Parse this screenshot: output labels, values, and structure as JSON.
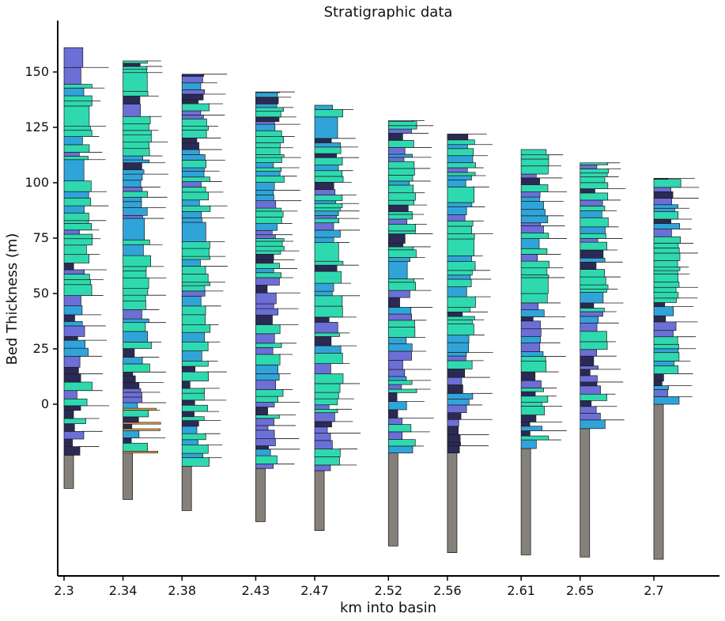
{
  "chart_data": {
    "type": "bar",
    "title": "Stratigraphic data",
    "xlabel": "km into basin",
    "ylabel": "Bed Thickness (m)",
    "x_ticks": [
      "2.3",
      "2.34",
      "2.38",
      "2.43",
      "2.47",
      "2.52",
      "2.56",
      "2.61",
      "2.65",
      "2.7"
    ],
    "y_ticks": [
      0,
      25,
      50,
      75,
      100,
      125,
      150
    ],
    "ylim": [
      -78,
      173
    ],
    "grid": false,
    "colors": {
      "turquoise": "#2fd9b0",
      "blue": "#30a4d9",
      "periwinkle": "#6b6fd6",
      "navy": "#2a2a55",
      "orange": "#f0a84a",
      "basement": "#85807a"
    },
    "columns": [
      {
        "x": 2.3,
        "base": -38,
        "top": 161,
        "basement_top": -23
      },
      {
        "x": 2.34,
        "base": -43,
        "top": 155,
        "basement_top": -22
      },
      {
        "x": 2.38,
        "base": -48,
        "top": 149,
        "basement_top": -28
      },
      {
        "x": 2.43,
        "base": -53,
        "top": 141,
        "basement_top": -29
      },
      {
        "x": 2.47,
        "base": -57,
        "top": 135,
        "basement_top": -30
      },
      {
        "x": 2.52,
        "base": -64,
        "top": 128,
        "basement_top": -22
      },
      {
        "x": 2.56,
        "base": -67,
        "top": 122,
        "basement_top": -22
      },
      {
        "x": 2.61,
        "base": -68,
        "top": 115,
        "basement_top": -20
      },
      {
        "x": 2.65,
        "base": -69,
        "top": 109,
        "basement_top": -11
      },
      {
        "x": 2.7,
        "base": -70,
        "top": 102,
        "basement_top": 0
      }
    ]
  }
}
